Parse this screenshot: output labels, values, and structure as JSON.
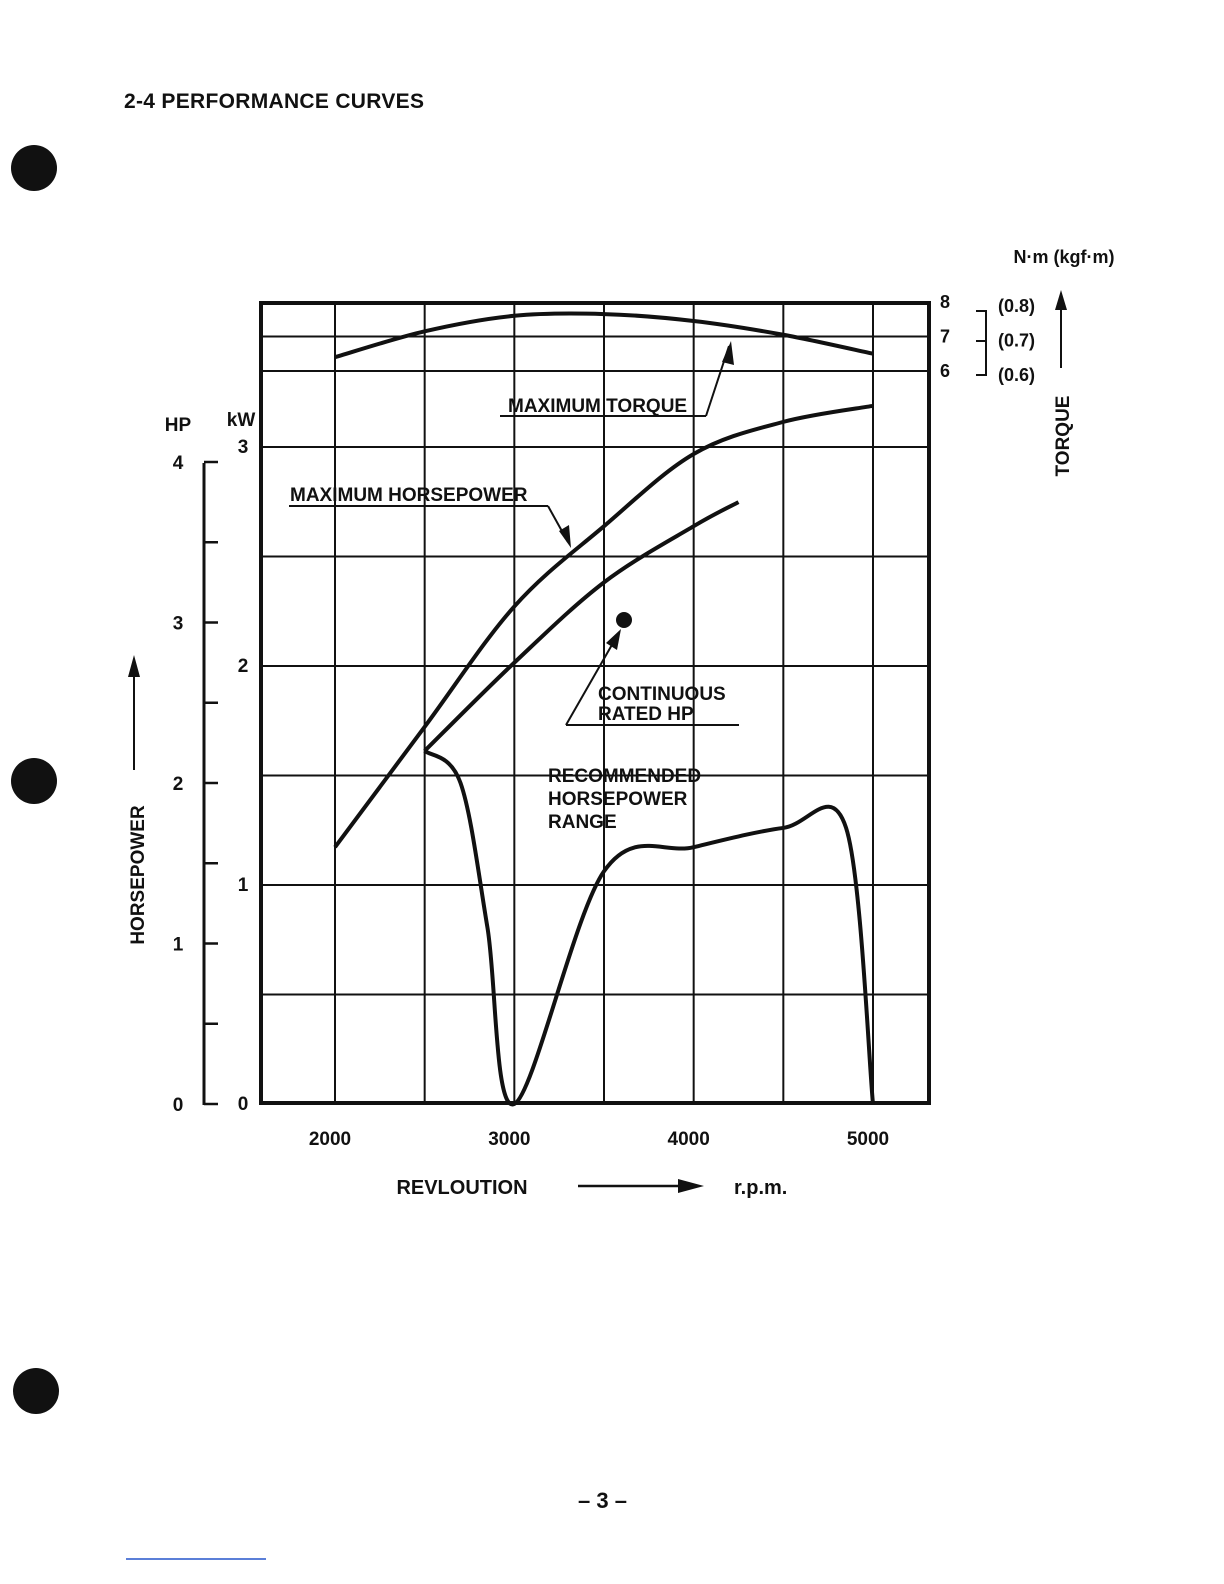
{
  "section_title": "2-4  PERFORMANCE CURVES",
  "page_number": "– 3 –",
  "chart_data": {
    "type": "line",
    "title": "",
    "x": [
      2000,
      2500,
      3000,
      3500,
      4000,
      4500,
      5000
    ],
    "xlim": [
      1600,
      5350
    ],
    "x_ticks": [
      "2000",
      "3000",
      "4000",
      "5000"
    ],
    "xlabel": "REVLOUTION",
    "xunit": "r.p.m.",
    "hp_axis": {
      "label": "HORSEPOWER",
      "unit": "HP",
      "ticks": [
        "0",
        "1",
        "2",
        "3",
        "4"
      ],
      "ylim": [
        0,
        4.3
      ]
    },
    "kw_axis": {
      "unit": "kW",
      "ticks": [
        "0",
        "1",
        "2",
        "3"
      ],
      "ylim": [
        0,
        3.2
      ]
    },
    "torque_axis": {
      "label": "TORQUE",
      "unit": "N·m (kgf·m)",
      "ticks": [
        "6",
        "7",
        "8"
      ],
      "ticks_kgfm": [
        "(0.6)",
        "(0.7)",
        "(0.8)"
      ],
      "ylim": [
        6,
        8
      ]
    },
    "grid": true,
    "series": [
      {
        "name": "MAXIMUM TORQUE",
        "axis": "torque_nm",
        "x": [
          2000,
          2500,
          3000,
          3500,
          4000,
          4500,
          5000
        ],
        "values": [
          6.4,
          7.15,
          7.6,
          7.65,
          7.45,
          7.05,
          6.5
        ]
      },
      {
        "name": "MAXIMUM HORSEPOWER",
        "axis": "hp",
        "x": [
          2000,
          2500,
          3000,
          3500,
          4000,
          4500,
          5000
        ],
        "values": [
          1.6,
          2.35,
          3.1,
          3.6,
          4.05,
          4.25,
          4.35
        ]
      },
      {
        "name": "CONTINUOUS RATED HP",
        "axis": "hp",
        "x": [
          2500,
          3000,
          3500,
          4000,
          4250
        ],
        "values": [
          2.2,
          2.75,
          3.25,
          3.6,
          3.75
        ]
      },
      {
        "name": "RECOMMENDED HORSEPOWER RANGE",
        "axis": "hp",
        "x": [
          2500,
          2700,
          2850,
          3000,
          3500,
          4000,
          4500,
          4850,
          5000
        ],
        "values": [
          2.2,
          2.0,
          1.1,
          0,
          1.45,
          1.6,
          1.72,
          1.72,
          0
        ]
      }
    ],
    "annotations": {
      "max_torque": "MAXIMUM TORQUE",
      "max_hp": "MAXIMUM HORSEPOWER",
      "continuous_1": "CONTINUOUS",
      "continuous_2": "RATED HP",
      "range_1": "RECOMMENDED",
      "range_2": "HORSEPOWER",
      "range_3": "RANGE"
    }
  }
}
